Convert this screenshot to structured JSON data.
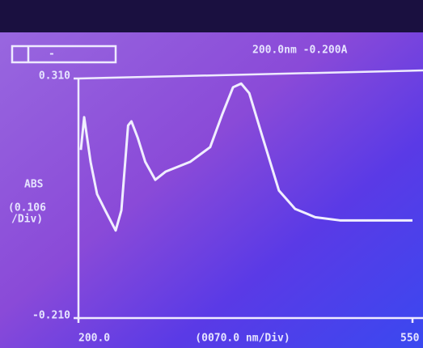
{
  "chart_data": {
    "type": "line",
    "header_indicator": "-",
    "header_readout": "200.0nm -0.200A",
    "y_label": "ABS",
    "y_scale_label": [
      "(0.106",
      "/Div)"
    ],
    "x_scale_label": "(0070.0 nm/Div)",
    "xlim": [
      200,
      550
    ],
    "xticks": [
      {
        "value": 200,
        "label": "200.0"
      },
      550
    ],
    "ylim": [
      -0.21,
      0.31
    ],
    "yticks": [
      {
        "value": 0.31,
        "label": "0.310"
      },
      {
        "value": -0.21,
        "label": "-0.210"
      }
    ],
    "color": "#f0eeff",
    "x": [
      202.5,
      206,
      212.7,
      219.5,
      228,
      239,
      245,
      252,
      255.5,
      262,
      270,
      280.5,
      291.5,
      317,
      338,
      351,
      362,
      370.5,
      379,
      393,
      410,
      427,
      448,
      474,
      550
    ],
    "values": [
      0.155,
      0.226,
      0.129,
      0.059,
      0.024,
      -0.02,
      0.024,
      0.208,
      0.217,
      0.182,
      0.129,
      0.09,
      0.108,
      0.129,
      0.161,
      0.234,
      0.291,
      0.299,
      0.278,
      0.182,
      0.067,
      0.027,
      0.009,
      0.002,
      0.002
    ]
  }
}
